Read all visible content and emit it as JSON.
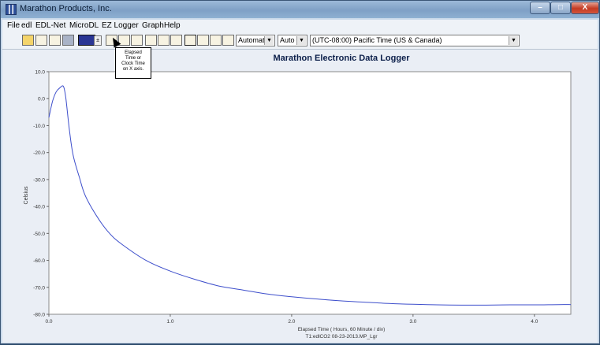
{
  "window": {
    "title": "Marathon Products, Inc.",
    "min_label": "–",
    "max_label": "□",
    "close_label": "X"
  },
  "menu": [
    "File",
    "edl",
    "EDL-Net",
    "MicroDL",
    "EZ Logger",
    "Graph",
    "Help"
  ],
  "toolbar": {
    "icons": [
      "open-folder-icon",
      "download-icon",
      "camera-icon",
      "print-icon",
      "line-color-swatch",
      "elapsed-clock-icon",
      "zoom-icon",
      "crosshair-icon",
      "table-icon",
      "grid-icon",
      "list-icon",
      "ez-icon",
      "search-icon",
      "chart-line-icon",
      "chart-icon"
    ],
    "scale_select": "Automatic",
    "auto_select": "Auto",
    "timezone_select": "(UTC-08:00) Pacific Time (US & Canada)",
    "tooltip_lines": [
      "Elapsed",
      "Time or",
      "Clock Time",
      "on X axis."
    ]
  },
  "chart_data": {
    "type": "line",
    "title": "Marathon Electronic Data Logger",
    "xlabel": "Elapsed Time ( Hours, 60 Minute / div)",
    "ylabel": "Celsius",
    "footer": "T1:edlCO2 08-23-2013.MP_Lgr",
    "xlim": [
      0,
      4.3
    ],
    "ylim": [
      -80,
      10
    ],
    "xticks": [
      "0.0",
      "1.0",
      "2.0",
      "3.0",
      "4.0"
    ],
    "yticks": [
      "10.0",
      "0.0",
      "-10.0",
      "-20.0",
      "-30.0",
      "-40.0",
      "-50.0",
      "-60.0",
      "-70.0",
      "-80.0"
    ],
    "line_color": "#3d4ecb",
    "x": [
      0.0,
      0.03,
      0.06,
      0.09,
      0.12,
      0.14,
      0.17,
      0.2,
      0.25,
      0.3,
      0.4,
      0.5,
      0.6,
      0.8,
      1.0,
      1.2,
      1.4,
      1.6,
      1.8,
      2.0,
      2.2,
      2.4,
      2.6,
      2.8,
      3.0,
      3.2,
      3.4,
      3.6,
      3.8,
      4.0,
      4.2,
      4.3
    ],
    "y": [
      -7,
      -1,
      2.5,
      4,
      4.5,
      0,
      -12,
      -21,
      -29,
      -36,
      -44,
      -50,
      -54,
      -60,
      -64,
      -67,
      -69.5,
      -71,
      -72.5,
      -73.5,
      -74.3,
      -75,
      -75.5,
      -76,
      -76.3,
      -76.5,
      -76.6,
      -76.6,
      -76.5,
      -76.5,
      -76.4,
      -76.4
    ]
  }
}
